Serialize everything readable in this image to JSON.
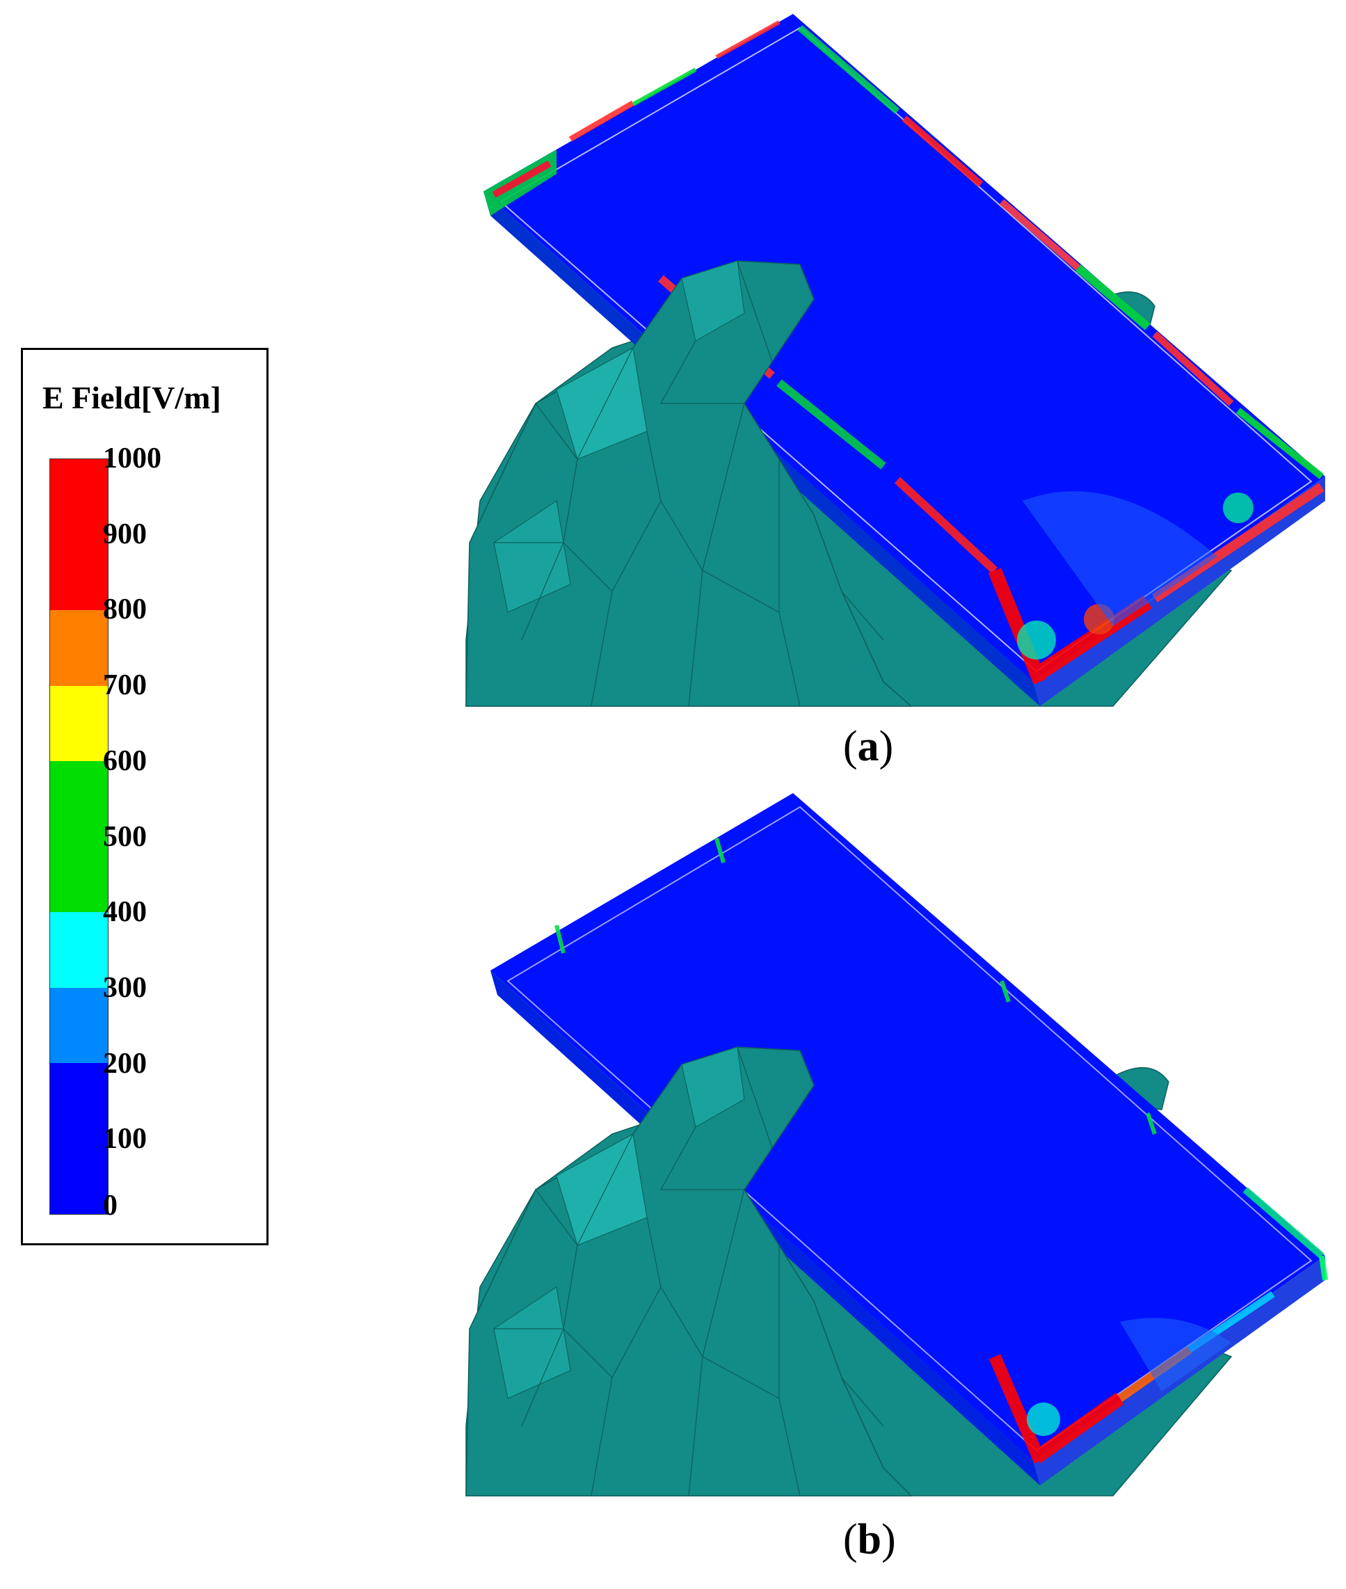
{
  "legend": {
    "title": "E Field[V/m]",
    "ticks": [
      "1000",
      "900",
      "800",
      "700",
      "600",
      "500",
      "400",
      "300",
      "200",
      "100",
      "0"
    ],
    "segment_colors": [
      "#ff0000",
      "#ff0000",
      "#ff8000",
      "#ffff00",
      "#00dd00",
      "#00dd00",
      "#00ffff",
      "#0088ff",
      "#0000ff",
      "#0000ff"
    ]
  },
  "panels": {
    "a": {
      "caption_open": "(",
      "caption_letter": "a",
      "caption_close": ")"
    },
    "b": {
      "caption_open": "(",
      "caption_letter": "b",
      "caption_close": ")"
    }
  },
  "colors": {
    "hand": "#138b86",
    "hand_light": "#1fb0ab",
    "hand_dark": "#0b6a66",
    "phone_face": "#0011ff",
    "phone_side": "#0020e0",
    "field_high": "#ff0000",
    "field_mid": "#00dd00",
    "field_low": "#00ffff"
  }
}
